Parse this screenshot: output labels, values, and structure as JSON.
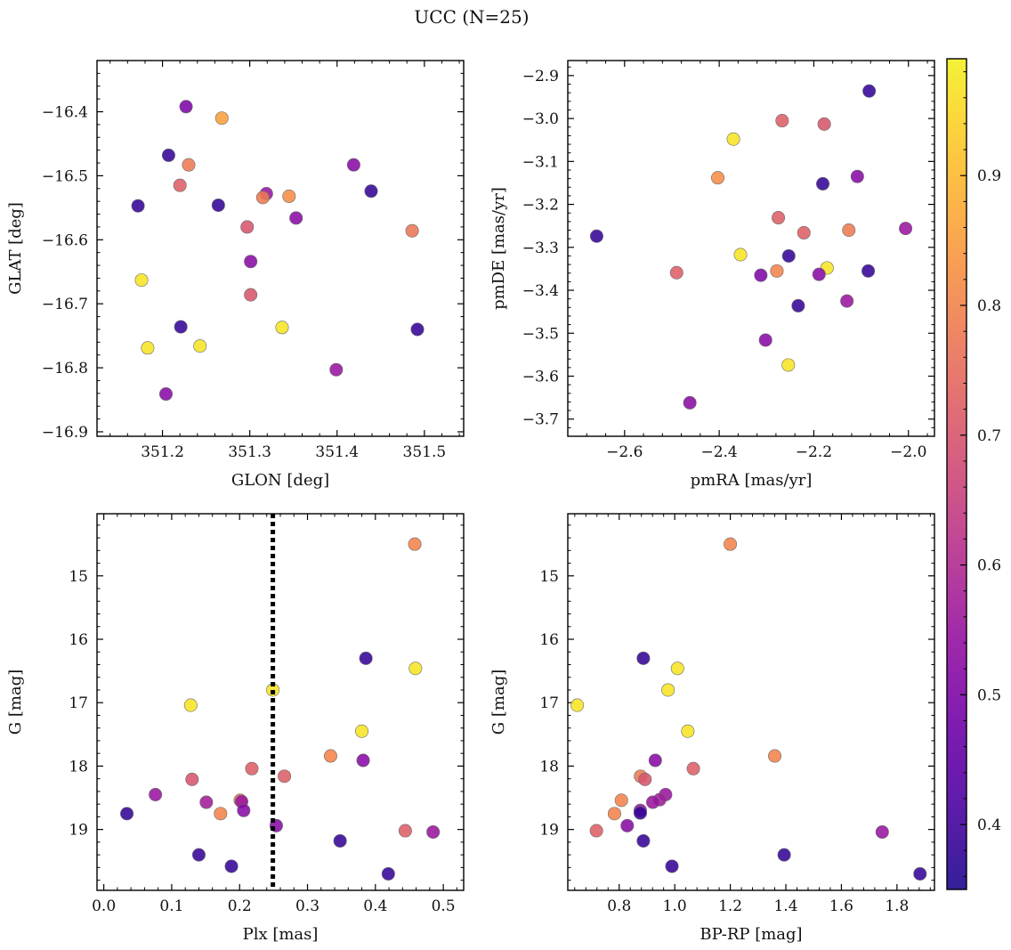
{
  "figure": {
    "title": "UCC (N=25)"
  },
  "colorbar": {
    "cmap": "plasma",
    "range": [
      0.35,
      0.99
    ],
    "ticks": [
      0.4,
      0.5,
      0.6,
      0.7,
      0.8,
      0.9
    ],
    "tick_labels": [
      "0.4",
      "0.5",
      "0.6",
      "0.7",
      "0.8",
      "0.9"
    ]
  },
  "chart_data": [
    {
      "type": "scatter",
      "xlabel": "GLON [deg]",
      "ylabel": "GLAT [deg]",
      "xlim": [
        351.125,
        351.545
      ],
      "ylim": [
        -16.907,
        -16.32
      ],
      "xticks": [
        351.2,
        351.3,
        351.4,
        351.5
      ],
      "xtick_labels": [
        "351.2",
        "351.3",
        "351.4",
        "351.5"
      ],
      "yticks": [
        -16.4,
        -16.5,
        -16.6,
        -16.7,
        -16.8,
        -16.9
      ],
      "ytick_labels": [
        "−16.4",
        "−16.5",
        "−16.6",
        "−16.7",
        "−16.8",
        "−16.9"
      ],
      "points": [
        {
          "x": 351.227,
          "y": -16.392,
          "c": 0.5
        },
        {
          "x": 351.268,
          "y": -16.41,
          "c": 0.85
        },
        {
          "x": 351.207,
          "y": -16.468,
          "c": 0.38
        },
        {
          "x": 351.23,
          "y": -16.483,
          "c": 0.78
        },
        {
          "x": 351.419,
          "y": -16.483,
          "c": 0.52
        },
        {
          "x": 351.22,
          "y": -16.515,
          "c": 0.72
        },
        {
          "x": 351.319,
          "y": -16.528,
          "c": 0.55
        },
        {
          "x": 351.315,
          "y": -16.534,
          "c": 0.78
        },
        {
          "x": 351.345,
          "y": -16.532,
          "c": 0.82
        },
        {
          "x": 351.439,
          "y": -16.524,
          "c": 0.38
        },
        {
          "x": 351.172,
          "y": -16.547,
          "c": 0.38
        },
        {
          "x": 351.264,
          "y": -16.546,
          "c": 0.38
        },
        {
          "x": 351.353,
          "y": -16.566,
          "c": 0.52
        },
        {
          "x": 351.297,
          "y": -16.58,
          "c": 0.7
        },
        {
          "x": 351.486,
          "y": -16.586,
          "c": 0.77
        },
        {
          "x": 351.301,
          "y": -16.634,
          "c": 0.52
        },
        {
          "x": 351.176,
          "y": -16.663,
          "c": 0.97
        },
        {
          "x": 351.301,
          "y": -16.686,
          "c": 0.7
        },
        {
          "x": 351.221,
          "y": -16.736,
          "c": 0.38
        },
        {
          "x": 351.337,
          "y": -16.737,
          "c": 0.97
        },
        {
          "x": 351.492,
          "y": -16.74,
          "c": 0.38
        },
        {
          "x": 351.243,
          "y": -16.766,
          "c": 0.97
        },
        {
          "x": 351.183,
          "y": -16.769,
          "c": 0.97
        },
        {
          "x": 351.399,
          "y": -16.803,
          "c": 0.55
        },
        {
          "x": 351.204,
          "y": -16.841,
          "c": 0.52
        }
      ]
    },
    {
      "type": "scatter",
      "xlabel": "pmRA [mas/yr]",
      "ylabel": "pmDE [mas/yr]",
      "xlim": [
        -2.72,
        -1.945
      ],
      "ylim": [
        -3.74,
        -2.865
      ],
      "xticks": [
        -2.6,
        -2.4,
        -2.2,
        -2.0
      ],
      "xtick_labels": [
        "−2.6",
        "−2.4",
        "−2.2",
        "−2.0"
      ],
      "yticks": [
        -2.9,
        -3.0,
        -3.1,
        -3.2,
        -3.3,
        -3.4,
        -3.5,
        -3.6,
        -3.7
      ],
      "ytick_labels": [
        "−2.9",
        "−3.0",
        "−3.1",
        "−3.2",
        "−3.3",
        "−3.4",
        "−3.5",
        "−3.6",
        "−3.7"
      ],
      "points": [
        {
          "x": -2.083,
          "y": -2.936,
          "c": 0.38
        },
        {
          "x": -2.267,
          "y": -3.005,
          "c": 0.72
        },
        {
          "x": -2.178,
          "y": -3.013,
          "c": 0.7
        },
        {
          "x": -2.37,
          "y": -3.048,
          "c": 0.97
        },
        {
          "x": -2.403,
          "y": -3.138,
          "c": 0.82
        },
        {
          "x": -2.108,
          "y": -3.135,
          "c": 0.52
        },
        {
          "x": -2.181,
          "y": -3.152,
          "c": 0.38
        },
        {
          "x": -2.275,
          "y": -3.231,
          "c": 0.72
        },
        {
          "x": -2.221,
          "y": -3.266,
          "c": 0.72
        },
        {
          "x": -2.126,
          "y": -3.26,
          "c": 0.78
        },
        {
          "x": -2.006,
          "y": -3.256,
          "c": 0.55
        },
        {
          "x": -2.659,
          "y": -3.274,
          "c": 0.38
        },
        {
          "x": -2.355,
          "y": -3.317,
          "c": 0.97
        },
        {
          "x": -2.253,
          "y": -3.32,
          "c": 0.38
        },
        {
          "x": -2.172,
          "y": -3.348,
          "c": 0.97
        },
        {
          "x": -2.085,
          "y": -3.355,
          "c": 0.38
        },
        {
          "x": -2.49,
          "y": -3.359,
          "c": 0.72
        },
        {
          "x": -2.278,
          "y": -3.355,
          "c": 0.8
        },
        {
          "x": -2.312,
          "y": -3.365,
          "c": 0.5
        },
        {
          "x": -2.189,
          "y": -3.363,
          "c": 0.52
        },
        {
          "x": -2.13,
          "y": -3.425,
          "c": 0.55
        },
        {
          "x": -2.233,
          "y": -3.436,
          "c": 0.38
        },
        {
          "x": -2.302,
          "y": -3.516,
          "c": 0.52
        },
        {
          "x": -2.254,
          "y": -3.574,
          "c": 0.97
        },
        {
          "x": -2.462,
          "y": -3.662,
          "c": 0.52
        }
      ]
    },
    {
      "type": "scatter",
      "xlabel": "Plx [mas]",
      "ylabel": "G [mag]",
      "xlim": [
        -0.01,
        0.53
      ],
      "ylim": [
        19.96,
        14.02
      ],
      "xticks": [
        0.0,
        0.1,
        0.2,
        0.3,
        0.4,
        0.5
      ],
      "xtick_labels": [
        "0.0",
        "0.1",
        "0.2",
        "0.3",
        "0.4",
        "0.5"
      ],
      "yticks": [
        15,
        16,
        17,
        18,
        19
      ],
      "ytick_labels": [
        "15",
        "16",
        "17",
        "18",
        "19"
      ],
      "vline": {
        "x": 0.249,
        "style": "dotted",
        "color": "#000000"
      },
      "points": [
        {
          "x": 0.458,
          "y": 14.5,
          "c": 0.8
        },
        {
          "x": 0.386,
          "y": 16.3,
          "c": 0.38
        },
        {
          "x": 0.459,
          "y": 16.46,
          "c": 0.97
        },
        {
          "x": 0.249,
          "y": 16.8,
          "c": 0.97
        },
        {
          "x": 0.128,
          "y": 17.04,
          "c": 0.97
        },
        {
          "x": 0.38,
          "y": 17.45,
          "c": 0.97
        },
        {
          "x": 0.334,
          "y": 17.84,
          "c": 0.8
        },
        {
          "x": 0.382,
          "y": 17.91,
          "c": 0.52
        },
        {
          "x": 0.218,
          "y": 18.04,
          "c": 0.72
        },
        {
          "x": 0.266,
          "y": 18.16,
          "c": 0.72
        },
        {
          "x": 0.13,
          "y": 18.21,
          "c": 0.7
        },
        {
          "x": 0.076,
          "y": 18.45,
          "c": 0.55
        },
        {
          "x": 0.151,
          "y": 18.57,
          "c": 0.57
        },
        {
          "x": 0.201,
          "y": 18.54,
          "c": 0.78
        },
        {
          "x": 0.203,
          "y": 18.56,
          "c": 0.55
        },
        {
          "x": 0.206,
          "y": 18.7,
          "c": 0.52
        },
        {
          "x": 0.172,
          "y": 18.75,
          "c": 0.8
        },
        {
          "x": 0.034,
          "y": 18.75,
          "c": 0.38
        },
        {
          "x": 0.254,
          "y": 18.94,
          "c": 0.52
        },
        {
          "x": 0.444,
          "y": 19.02,
          "c": 0.72
        },
        {
          "x": 0.485,
          "y": 19.04,
          "c": 0.55
        },
        {
          "x": 0.348,
          "y": 19.18,
          "c": 0.38
        },
        {
          "x": 0.14,
          "y": 19.4,
          "c": 0.38
        },
        {
          "x": 0.188,
          "y": 19.58,
          "c": 0.38
        },
        {
          "x": 0.419,
          "y": 19.7,
          "c": 0.38
        }
      ]
    },
    {
      "type": "scatter",
      "xlabel": "BP-RP [mag]",
      "ylabel": "G [mag]",
      "xlim": [
        0.615,
        1.935
      ],
      "ylim": [
        19.96,
        14.02
      ],
      "xticks": [
        0.8,
        1.0,
        1.2,
        1.4,
        1.6,
        1.8
      ],
      "xtick_labels": [
        "0.8",
        "1.0",
        "1.2",
        "1.4",
        "1.6",
        "1.8"
      ],
      "yticks": [
        15,
        16,
        17,
        18,
        19
      ],
      "ytick_labels": [
        "15",
        "16",
        "17",
        "18",
        "19"
      ],
      "points": [
        {
          "x": 1.2,
          "y": 14.5,
          "c": 0.8
        },
        {
          "x": 0.887,
          "y": 16.3,
          "c": 0.38
        },
        {
          "x": 1.01,
          "y": 16.46,
          "c": 0.97
        },
        {
          "x": 0.976,
          "y": 16.8,
          "c": 0.97
        },
        {
          "x": 0.649,
          "y": 17.04,
          "c": 0.97
        },
        {
          "x": 1.047,
          "y": 17.45,
          "c": 0.97
        },
        {
          "x": 1.36,
          "y": 17.84,
          "c": 0.8
        },
        {
          "x": 0.93,
          "y": 17.91,
          "c": 0.52
        },
        {
          "x": 1.067,
          "y": 18.04,
          "c": 0.72
        },
        {
          "x": 0.877,
          "y": 18.16,
          "c": 0.78
        },
        {
          "x": 0.893,
          "y": 18.21,
          "c": 0.7
        },
        {
          "x": 0.967,
          "y": 18.45,
          "c": 0.55
        },
        {
          "x": 0.946,
          "y": 18.53,
          "c": 0.57
        },
        {
          "x": 0.921,
          "y": 18.57,
          "c": 0.55
        },
        {
          "x": 0.808,
          "y": 18.54,
          "c": 0.8
        },
        {
          "x": 0.876,
          "y": 18.7,
          "c": 0.55
        },
        {
          "x": 0.876,
          "y": 18.74,
          "c": 0.38
        },
        {
          "x": 0.783,
          "y": 18.75,
          "c": 0.8
        },
        {
          "x": 0.829,
          "y": 18.94,
          "c": 0.52
        },
        {
          "x": 0.718,
          "y": 19.02,
          "c": 0.72
        },
        {
          "x": 1.747,
          "y": 19.04,
          "c": 0.55
        },
        {
          "x": 0.887,
          "y": 19.18,
          "c": 0.38
        },
        {
          "x": 1.394,
          "y": 19.4,
          "c": 0.38
        },
        {
          "x": 0.99,
          "y": 19.58,
          "c": 0.38
        },
        {
          "x": 1.883,
          "y": 19.7,
          "c": 0.38
        }
      ]
    }
  ]
}
